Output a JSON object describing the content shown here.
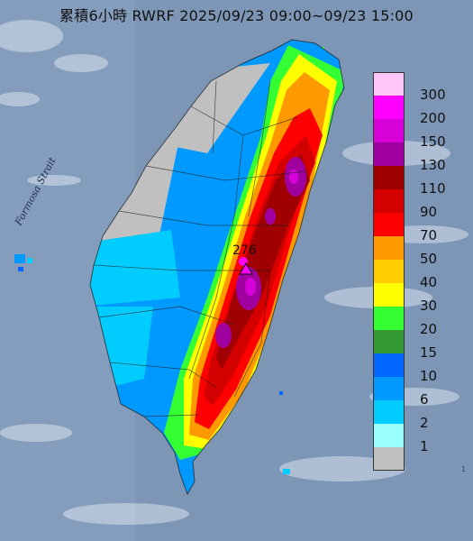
{
  "header": {
    "title": "累積6小時 RWRF 2025/09/23 09:00~09/23 15:00"
  },
  "map": {
    "sea_label": "Formosa Strait",
    "peak_value": "276",
    "corner_text": "1"
  },
  "legend": {
    "colors": [
      "#ffc6fa",
      "#ff00ff",
      "#d800d8",
      "#a000a0",
      "#a00000",
      "#d40000",
      "#ff0000",
      "#ff9900",
      "#ffcc00",
      "#ffff00",
      "#33ff33",
      "#339933",
      "#0066ff",
      "#0099ff",
      "#00ccff",
      "#99ffff",
      "#c0c0c0"
    ],
    "labels": [
      "300",
      "200",
      "150",
      "130",
      "110",
      "90",
      "70",
      "50",
      "40",
      "30",
      "20",
      "15",
      "10",
      "6",
      "2",
      "1"
    ]
  }
}
